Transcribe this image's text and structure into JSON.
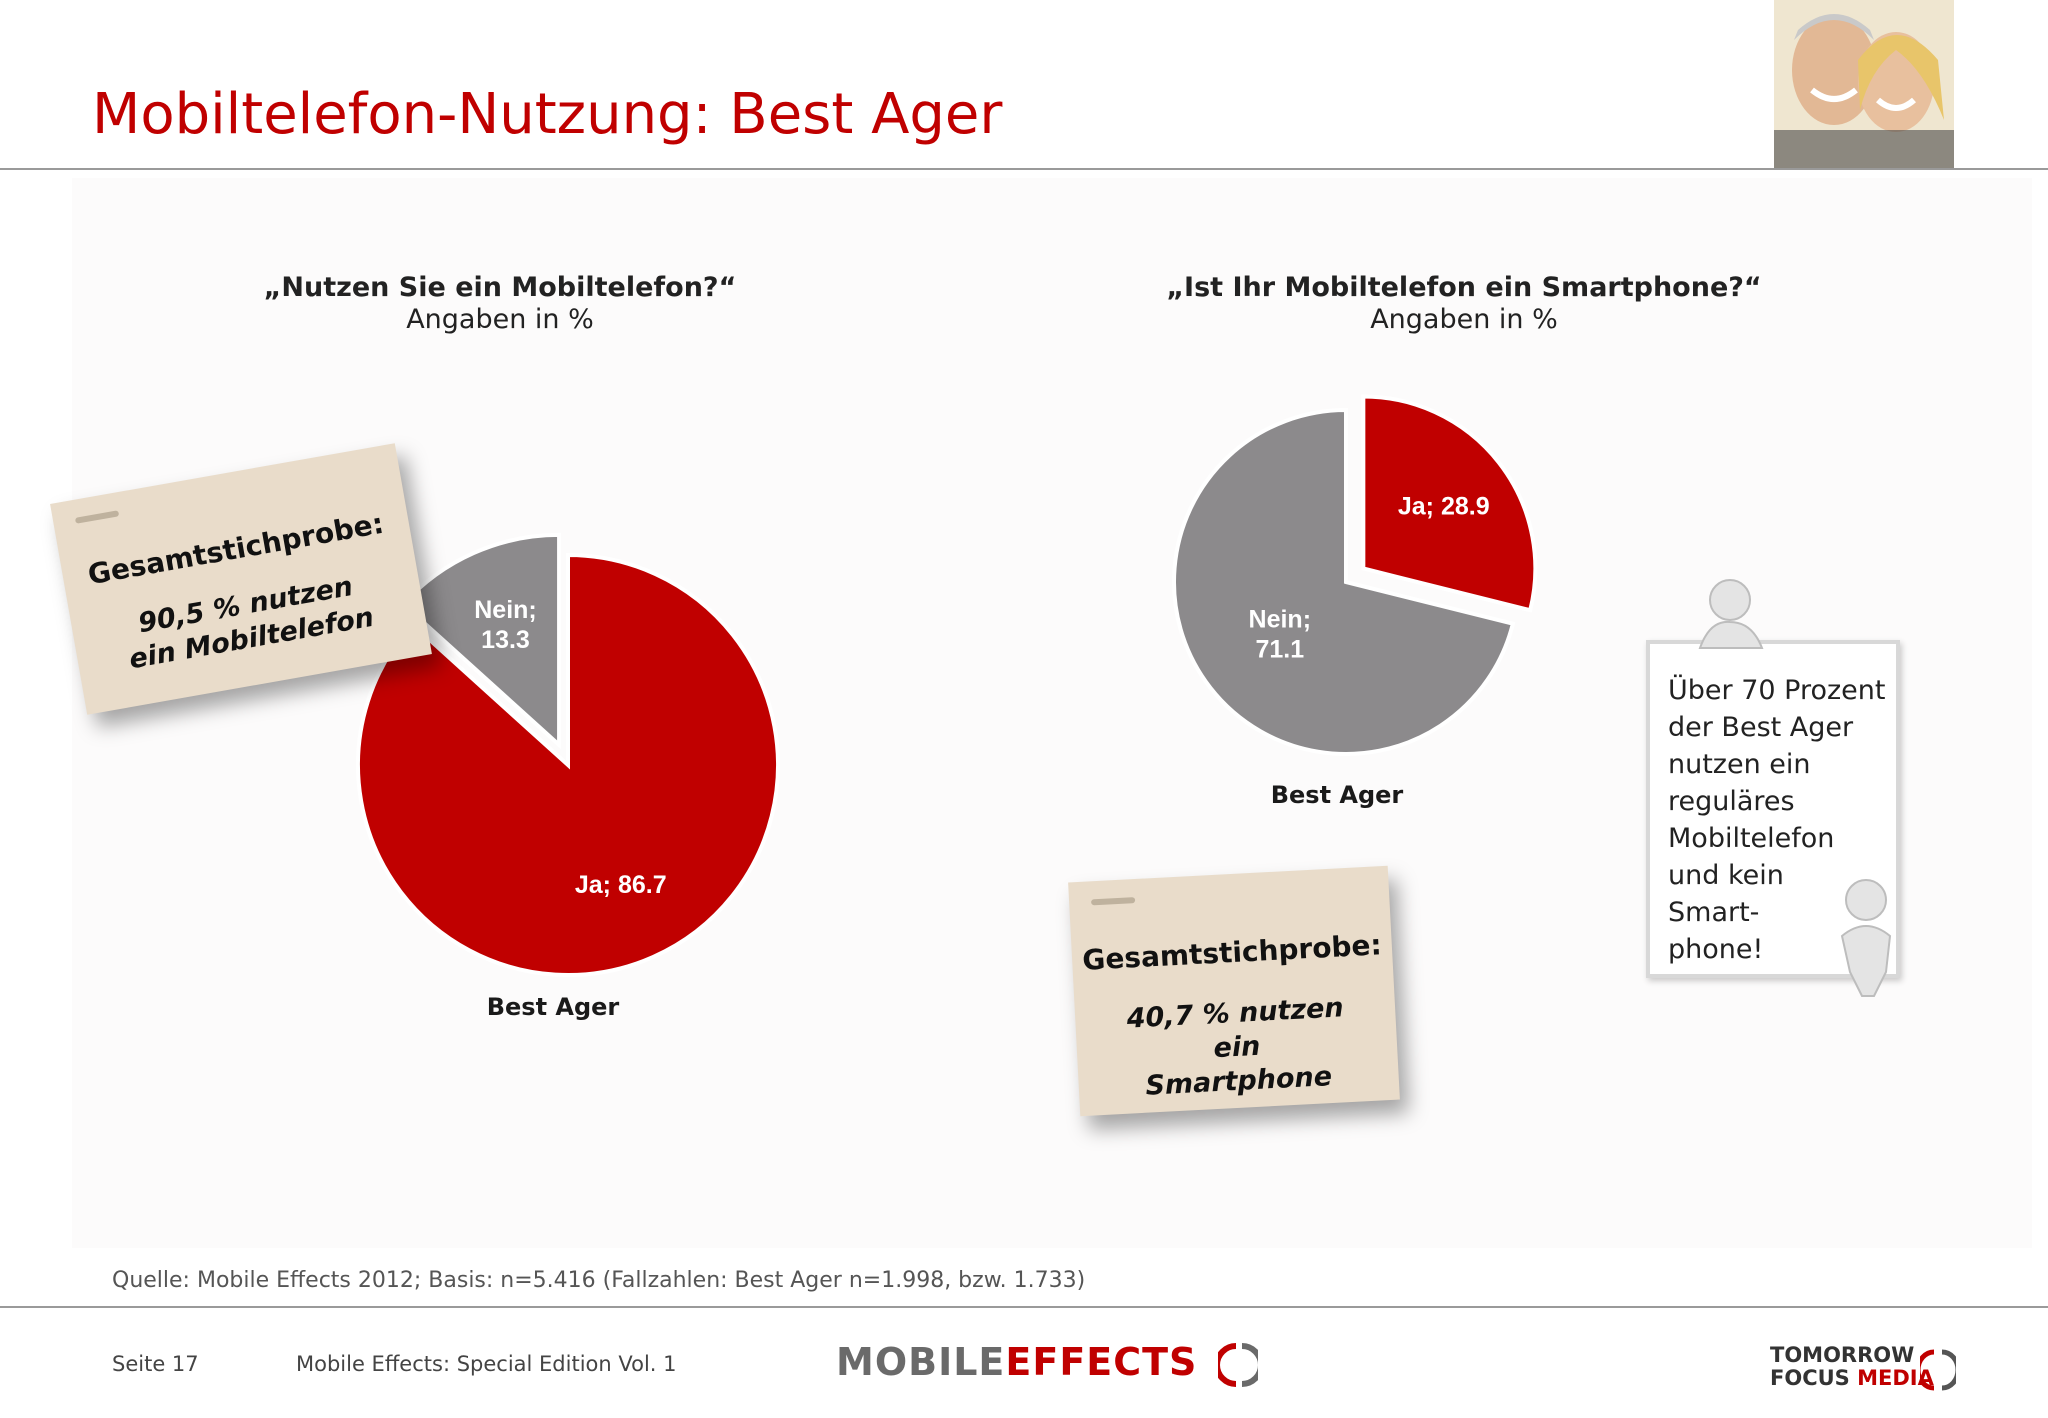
{
  "header": {
    "title": "Mobiltelefon-Nutzung: Best Ager"
  },
  "chart_data": [
    {
      "type": "pie",
      "title": "„Nutzen Sie ein Mobiltelefon?“",
      "subtitle": "Angaben in %",
      "xlabel": "Best Ager",
      "slices": [
        {
          "label": "Ja",
          "value": 86.7,
          "text": "Ja; 86.7",
          "color": "#c00000",
          "exploded": false
        },
        {
          "label": "Nein",
          "value": 13.3,
          "text": "Nein; 13.3",
          "color": "#8c8a8c",
          "exploded": true
        }
      ]
    },
    {
      "type": "pie",
      "title": "„Ist Ihr Mobiltelefon ein Smartphone?“",
      "subtitle": "Angaben in %",
      "xlabel": "Best Ager",
      "slices": [
        {
          "label": "Ja",
          "value": 28.9,
          "text": "Ja; 28.9",
          "color": "#c00000",
          "exploded": true
        },
        {
          "label": "Nein",
          "value": 71.1,
          "text": "Nein; 71.1",
          "color": "#8c8a8c",
          "exploded": false
        }
      ]
    }
  ],
  "notes": {
    "left": {
      "heading": "Gesamtstichprobe:",
      "body": "90,5 % nutzen ein Mobiltelefon"
    },
    "right": {
      "heading": "Gesamtstichprobe:",
      "body": "40,7 % nutzen ein Smartphone"
    }
  },
  "sign": {
    "lines": [
      "Über 70 Prozent",
      "der Best Ager",
      "nutzen ein",
      "reguläres",
      "Mobiltelefon",
      "und kein",
      "Smart-",
      "phone!"
    ]
  },
  "footer": {
    "source": "Quelle: Mobile Effects 2012; Basis: n=5.416 (Fallzahlen: Best Ager n=1.998, bzw. 1.733)",
    "page": "Seite 17",
    "publication": "Mobile Effects: Special Edition Vol. 1",
    "logo_left_a": "MOBILE",
    "logo_left_b": "EFFECTS",
    "logo_right_a": "TOMORROW",
    "logo_right_b": "FOCUS",
    "logo_right_c": "MEDIA"
  },
  "colors": {
    "accent": "#c00000",
    "grey": "#8c8a8c",
    "note": "#e9dcca"
  }
}
